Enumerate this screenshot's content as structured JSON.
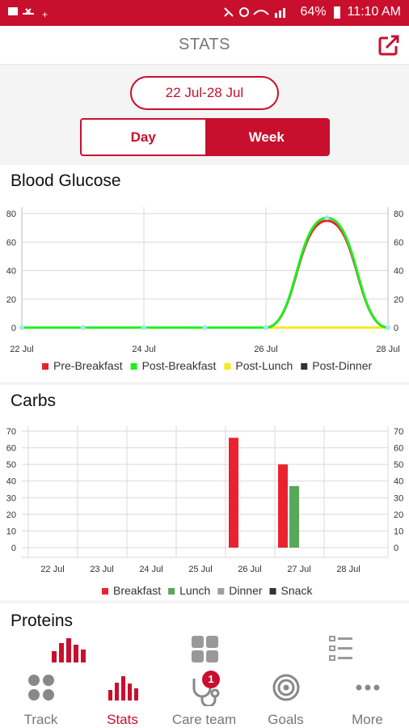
{
  "status_bar": {
    "battery": "64%",
    "time": "11:10 AM"
  },
  "header": {
    "title": "STATS"
  },
  "date_range": "22 Jul-28 Jul",
  "segments": {
    "day": "Day",
    "week": "Week",
    "selected": "Week"
  },
  "glucose": {
    "title": "Blood Glucose",
    "chart_data": {
      "type": "line",
      "x": [
        "22 Jul",
        "23 Jul",
        "24 Jul",
        "25 Jul",
        "26 Jul",
        "27 Jul",
        "28 Jul"
      ],
      "x_tick_labels": [
        "22 Jul",
        "24 Jul",
        "26 Jul",
        "28 Jul"
      ],
      "ylim": [
        0,
        80
      ],
      "yticks": [
        0,
        20,
        40,
        60,
        80
      ],
      "series": [
        {
          "name": "Pre-Breakfast",
          "color": "#e8232f",
          "values": [
            0,
            0,
            0,
            0,
            0,
            75,
            0
          ]
        },
        {
          "name": "Post-Breakfast",
          "color": "#1ef01e",
          "values": [
            0,
            0,
            0,
            0,
            0,
            77,
            0
          ]
        },
        {
          "name": "Post-Lunch",
          "color": "#f5ea1d",
          "values": [
            0,
            0,
            0,
            0,
            0,
            0,
            0
          ]
        },
        {
          "name": "Post-Dinner",
          "color": "#333333",
          "values": [
            0,
            0,
            0,
            0,
            0,
            0,
            0
          ]
        }
      ],
      "legend_position": "bottom"
    }
  },
  "carbs": {
    "title": "Carbs",
    "chart_data": {
      "type": "bar",
      "categories": [
        "22 Jul",
        "23 Jul",
        "24 Jul",
        "25 Jul",
        "26 Jul",
        "27 Jul",
        "28 Jul"
      ],
      "ylim": [
        0,
        70
      ],
      "yticks": [
        0,
        10,
        20,
        30,
        40,
        50,
        60,
        70
      ],
      "series": [
        {
          "name": "Breakfast",
          "color": "#e8232f",
          "values": [
            0,
            0,
            0,
            0,
            66,
            50,
            0
          ]
        },
        {
          "name": "Lunch",
          "color": "#58a85a",
          "values": [
            0,
            0,
            0,
            0,
            0,
            37,
            0
          ]
        },
        {
          "name": "Dinner",
          "color": "#9e9e9e",
          "values": [
            0,
            0,
            0,
            0,
            0,
            0,
            0
          ]
        },
        {
          "name": "Snack",
          "color": "#333333",
          "values": [
            0,
            0,
            0,
            0,
            0,
            0,
            0
          ]
        }
      ],
      "legend_position": "bottom"
    }
  },
  "proteins": {
    "title": "Proteins"
  },
  "nav": [
    {
      "label": "Track",
      "icon": "grid-circles-icon"
    },
    {
      "label": "Stats",
      "icon": "bar-chart-icon"
    },
    {
      "label": "Care team",
      "icon": "stethoscope-icon",
      "badge": "1"
    },
    {
      "label": "Goals",
      "icon": "target-icon"
    },
    {
      "label": "More",
      "icon": "dots-icon"
    }
  ],
  "proteins_tabs": [
    {
      "icon": "bar-chart-icon"
    },
    {
      "icon": "tiles-icon"
    },
    {
      "icon": "list-icon"
    }
  ]
}
